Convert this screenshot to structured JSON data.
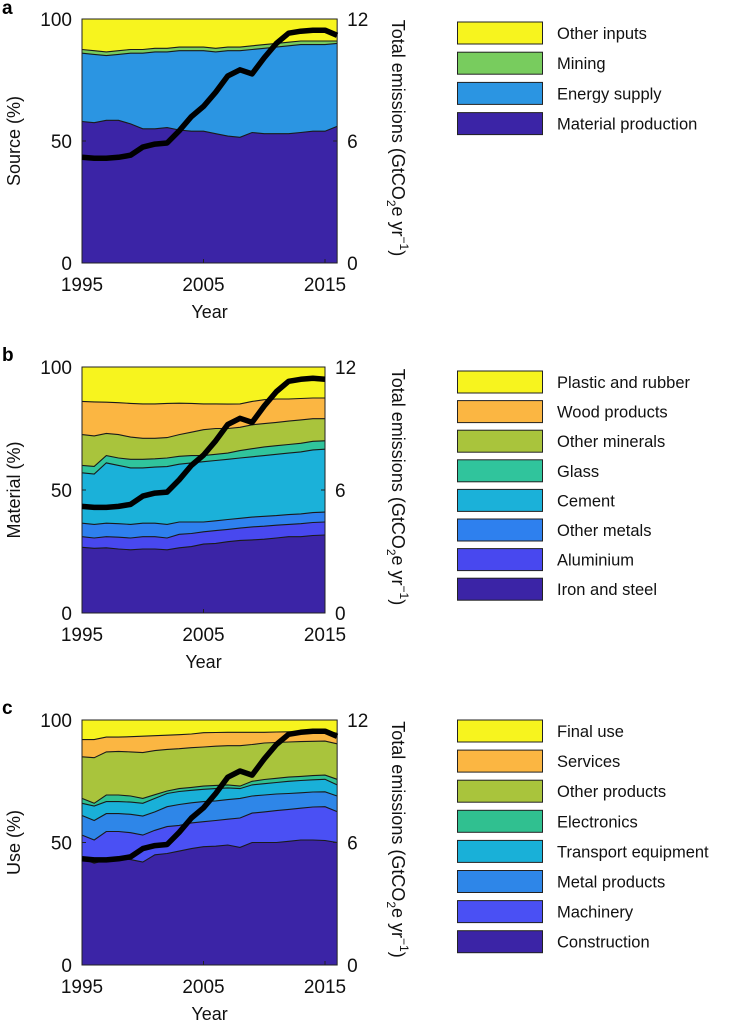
{
  "chart_data": [
    {
      "panel_label": "a",
      "type": "area",
      "stacked": true,
      "value_mode": "cumulative upper boundary (%)",
      "x": [
        1995,
        1996,
        1997,
        1998,
        1999,
        2000,
        2001,
        2002,
        2003,
        2004,
        2005,
        2006,
        2007,
        2008,
        2009,
        2010,
        2011,
        2012,
        2013,
        2014,
        2015,
        2016
      ],
      "xticks": [
        "1995",
        "2005",
        "2015"
      ],
      "xtick_values": [
        1995,
        2005,
        2015
      ],
      "xlabel": "Year",
      "ylabel": "Source (%)",
      "ylim": [
        0,
        100
      ],
      "yticks": [
        "0",
        "50",
        "100"
      ],
      "y2label": "Total emissions (GtCO",
      "y2label_sub": "2",
      "y2label_mid": "e yr",
      "y2label_sup": "−1",
      "y2label_end": ")",
      "y2lim": [
        0,
        12
      ],
      "y2ticks": [
        "0",
        "6",
        "12"
      ],
      "legend_placement": "right",
      "series": [
        {
          "name": "Material production",
          "color": "#3b24a6",
          "upper": [
            58,
            57.5,
            58.5,
            58.5,
            57,
            55,
            55,
            55.5,
            54.5,
            54,
            54,
            53,
            52,
            51.5,
            53.5,
            53,
            53,
            53,
            53.5,
            54,
            54,
            56
          ]
        },
        {
          "name": "Energy supply",
          "color": "#2b95e2",
          "upper": [
            86,
            85.5,
            85,
            85.5,
            86,
            86,
            86.5,
            86.5,
            87,
            87,
            87,
            86.5,
            87,
            87,
            87.5,
            88,
            88.5,
            89,
            89.5,
            89.5,
            89.5,
            90
          ]
        },
        {
          "name": "Mining",
          "color": "#78cc5e",
          "upper": [
            87.5,
            87,
            86.5,
            87,
            87.5,
            87.5,
            88,
            88,
            88.5,
            88.5,
            88.5,
            88,
            88.5,
            88.5,
            89,
            89.5,
            90,
            90.5,
            91,
            91,
            91,
            91
          ]
        },
        {
          "name": "Other inputs",
          "color": "#f7f41e",
          "upper": [
            100,
            100,
            100,
            100,
            100,
            100,
            100,
            100,
            100,
            100,
            100,
            100,
            100,
            100,
            100,
            100,
            100,
            100,
            100,
            100,
            100,
            100
          ]
        }
      ],
      "line": {
        "name": "Total emissions",
        "color": "#000000",
        "values": [
          5.2,
          5.15,
          5.15,
          5.2,
          5.3,
          5.7,
          5.85,
          5.9,
          6.5,
          7.2,
          7.7,
          8.4,
          9.2,
          9.5,
          9.3,
          10.1,
          10.8,
          11.3,
          11.4,
          11.45,
          11.45,
          11.2
        ]
      }
    },
    {
      "panel_label": "b",
      "type": "area",
      "stacked": true,
      "value_mode": "cumulative upper boundary (%)",
      "x": [
        1995,
        1996,
        1997,
        1998,
        1999,
        2000,
        2001,
        2002,
        2003,
        2004,
        2005,
        2006,
        2007,
        2008,
        2009,
        2010,
        2011,
        2012,
        2013,
        2014,
        2015
      ],
      "xticks": [
        "1995",
        "2005",
        "2015"
      ],
      "xtick_values": [
        1995,
        2005,
        2015
      ],
      "xlabel": "Year",
      "ylabel": "Material (%)",
      "ylim": [
        0,
        100
      ],
      "yticks": [
        "0",
        "50",
        "100"
      ],
      "y2label": "Total emissions (GtCO",
      "y2label_sub": "2",
      "y2label_mid": "e yr",
      "y2label_sup": "−1",
      "y2label_end": ")",
      "y2lim": [
        0,
        12
      ],
      "y2ticks": [
        "0",
        "6",
        "12"
      ],
      "legend_placement": "right",
      "series": [
        {
          "name": "Iron and steel",
          "color": "#3b24a6",
          "upper": [
            26.7,
            26.3,
            26.5,
            26,
            25.7,
            26,
            26,
            25.7,
            26.5,
            27,
            28,
            28.3,
            29,
            29.5,
            29.7,
            30,
            30.5,
            31,
            31,
            31.5,
            31.7
          ]
        },
        {
          "name": "Aluminium",
          "color": "#4848ef",
          "upper": [
            31,
            30.5,
            31,
            30.8,
            30.5,
            31,
            31,
            30.5,
            32,
            32.3,
            33,
            33.5,
            34,
            34.5,
            35,
            35.3,
            35.7,
            36,
            36.3,
            36.8,
            37
          ]
        },
        {
          "name": "Other metals",
          "color": "#2e80ee",
          "upper": [
            36.5,
            36,
            36.5,
            36.3,
            36,
            36.5,
            36.5,
            36,
            37,
            37,
            37,
            37.5,
            38,
            38.5,
            39,
            39.3,
            39.6,
            40,
            40.3,
            40.8,
            41
          ]
        },
        {
          "name": "Cement",
          "color": "#1bb1d9",
          "upper": [
            57,
            56.5,
            61,
            60,
            59,
            59,
            59.3,
            59.5,
            60.5,
            61,
            61.5,
            62,
            62.5,
            63,
            63.5,
            64,
            64.5,
            65,
            65.5,
            66.3,
            66.6
          ]
        },
        {
          "name": "Glass",
          "color": "#30c49c",
          "upper": [
            60,
            59.6,
            64,
            63,
            62.5,
            62.5,
            62.7,
            63,
            63.7,
            64,
            64,
            64.5,
            65,
            66,
            66.8,
            67.5,
            68,
            68.5,
            69,
            69.8,
            70
          ]
        },
        {
          "name": "Other minerals",
          "color": "#a9c43c",
          "upper": [
            72.5,
            72,
            73,
            72.5,
            71.5,
            71,
            71,
            71.3,
            72.5,
            73.5,
            74.5,
            75,
            75,
            75.5,
            76.5,
            77,
            77.5,
            78,
            78.5,
            79,
            79
          ]
        },
        {
          "name": "Wood products",
          "color": "#fbb642",
          "upper": [
            86,
            85.8,
            85.7,
            85.5,
            85.2,
            85,
            85,
            85.2,
            85.3,
            85.2,
            85,
            85,
            84.9,
            85,
            86,
            86.7,
            87,
            87,
            87.2,
            87.4,
            87.4
          ]
        },
        {
          "name": "Plastic and rubber",
          "color": "#f7f41e",
          "upper": [
            100,
            100,
            100,
            100,
            100,
            100,
            100,
            100,
            100,
            100,
            100,
            100,
            100,
            100,
            100,
            100,
            100,
            100,
            100,
            100,
            100
          ]
        }
      ],
      "line": {
        "name": "Total emissions",
        "color": "#000000",
        "values": [
          5.2,
          5.15,
          5.15,
          5.2,
          5.3,
          5.7,
          5.85,
          5.9,
          6.5,
          7.2,
          7.7,
          8.4,
          9.2,
          9.5,
          9.3,
          10.1,
          10.8,
          11.3,
          11.4,
          11.45,
          11.4
        ]
      }
    },
    {
      "panel_label": "c",
      "type": "area",
      "stacked": true,
      "value_mode": "cumulative upper boundary (%)",
      "x": [
        1995,
        1996,
        1997,
        1998,
        1999,
        2000,
        2001,
        2002,
        2003,
        2004,
        2005,
        2006,
        2007,
        2008,
        2009,
        2010,
        2011,
        2012,
        2013,
        2014,
        2015,
        2016
      ],
      "xticks": [
        "1995",
        "2005",
        "2015"
      ],
      "xtick_values": [
        1995,
        2005,
        2015
      ],
      "xlabel": "Year",
      "ylabel": "Use (%)",
      "ylim": [
        0,
        100
      ],
      "yticks": [
        "0",
        "50",
        "100"
      ],
      "y2label": "Total emissions (GtCO",
      "y2label_sub": "2",
      "y2label_mid": "e yr",
      "y2label_sup": "−1",
      "y2label_end": ")",
      "y2lim": [
        0,
        12
      ],
      "y2ticks": [
        "0",
        "6",
        "12"
      ],
      "legend_placement": "right",
      "series": [
        {
          "name": "Construction",
          "color": "#3b24a6",
          "upper": [
            43.5,
            41.5,
            43,
            43.5,
            43,
            42,
            45,
            45.5,
            46.5,
            47.5,
            48.3,
            48.5,
            49,
            48,
            50,
            50,
            50,
            50.5,
            51,
            51,
            50.8,
            50
          ]
        },
        {
          "name": "Machinery",
          "color": "#4a50f4",
          "upper": [
            53,
            51,
            54.5,
            54.5,
            54,
            53,
            55,
            56.5,
            57,
            58,
            58.5,
            59,
            59.5,
            60,
            62,
            62.5,
            63,
            63.5,
            64,
            64.5,
            64.6,
            62.6
          ]
        },
        {
          "name": "Metal products",
          "color": "#2e86e8",
          "upper": [
            61,
            59,
            61.8,
            61.8,
            61.5,
            60.8,
            62.5,
            64.6,
            65.5,
            66.2,
            66.7,
            67,
            67.5,
            68,
            69,
            69.4,
            69.8,
            70,
            70.3,
            70.6,
            70.7,
            69
          ]
        },
        {
          "name": "Transport equipment",
          "color": "#19b0d8",
          "upper": [
            66,
            64.9,
            66.7,
            66.7,
            66.5,
            66,
            68,
            70,
            70.8,
            71.3,
            71.7,
            72,
            72.3,
            72,
            73.5,
            74,
            74.5,
            75,
            75.3,
            75.6,
            75.8,
            73.5
          ]
        },
        {
          "name": "Electronics",
          "color": "#30c090",
          "upper": [
            68,
            66,
            69.4,
            69.4,
            69,
            68,
            69.5,
            71,
            72,
            72.5,
            73,
            73.3,
            73.5,
            73,
            75,
            75.7,
            76.2,
            76.7,
            77,
            77.3,
            77.5,
            75.8
          ]
        },
        {
          "name": "Other products",
          "color": "#a9c43c",
          "upper": [
            85,
            84.6,
            87,
            87.2,
            87,
            86.7,
            87.5,
            88,
            88.3,
            88.7,
            89,
            89.3,
            89.5,
            89.5,
            90,
            90.6,
            90.8,
            91,
            91.2,
            91.3,
            91.4,
            90.3
          ]
        },
        {
          "name": "Services",
          "color": "#fbb642",
          "upper": [
            92,
            92,
            93,
            93,
            93.2,
            93.4,
            93.6,
            93.8,
            94,
            94.3,
            94.8,
            94.9,
            95,
            95,
            95,
            95,
            95.1,
            95.2,
            95.2,
            95.2,
            95.2,
            94.6
          ]
        },
        {
          "name": "Final use",
          "color": "#f7f41e",
          "upper": [
            100,
            100,
            100,
            100,
            100,
            100,
            100,
            100,
            100,
            100,
            100,
            100,
            100,
            100,
            100,
            100,
            100,
            100,
            100,
            100,
            100,
            100
          ]
        }
      ],
      "line": {
        "name": "Total emissions",
        "color": "#000000",
        "values": [
          5.2,
          5.15,
          5.15,
          5.2,
          5.3,
          5.7,
          5.85,
          5.9,
          6.5,
          7.2,
          7.7,
          8.4,
          9.2,
          9.5,
          9.3,
          10.1,
          10.8,
          11.3,
          11.4,
          11.45,
          11.45,
          11.2
        ]
      }
    }
  ]
}
